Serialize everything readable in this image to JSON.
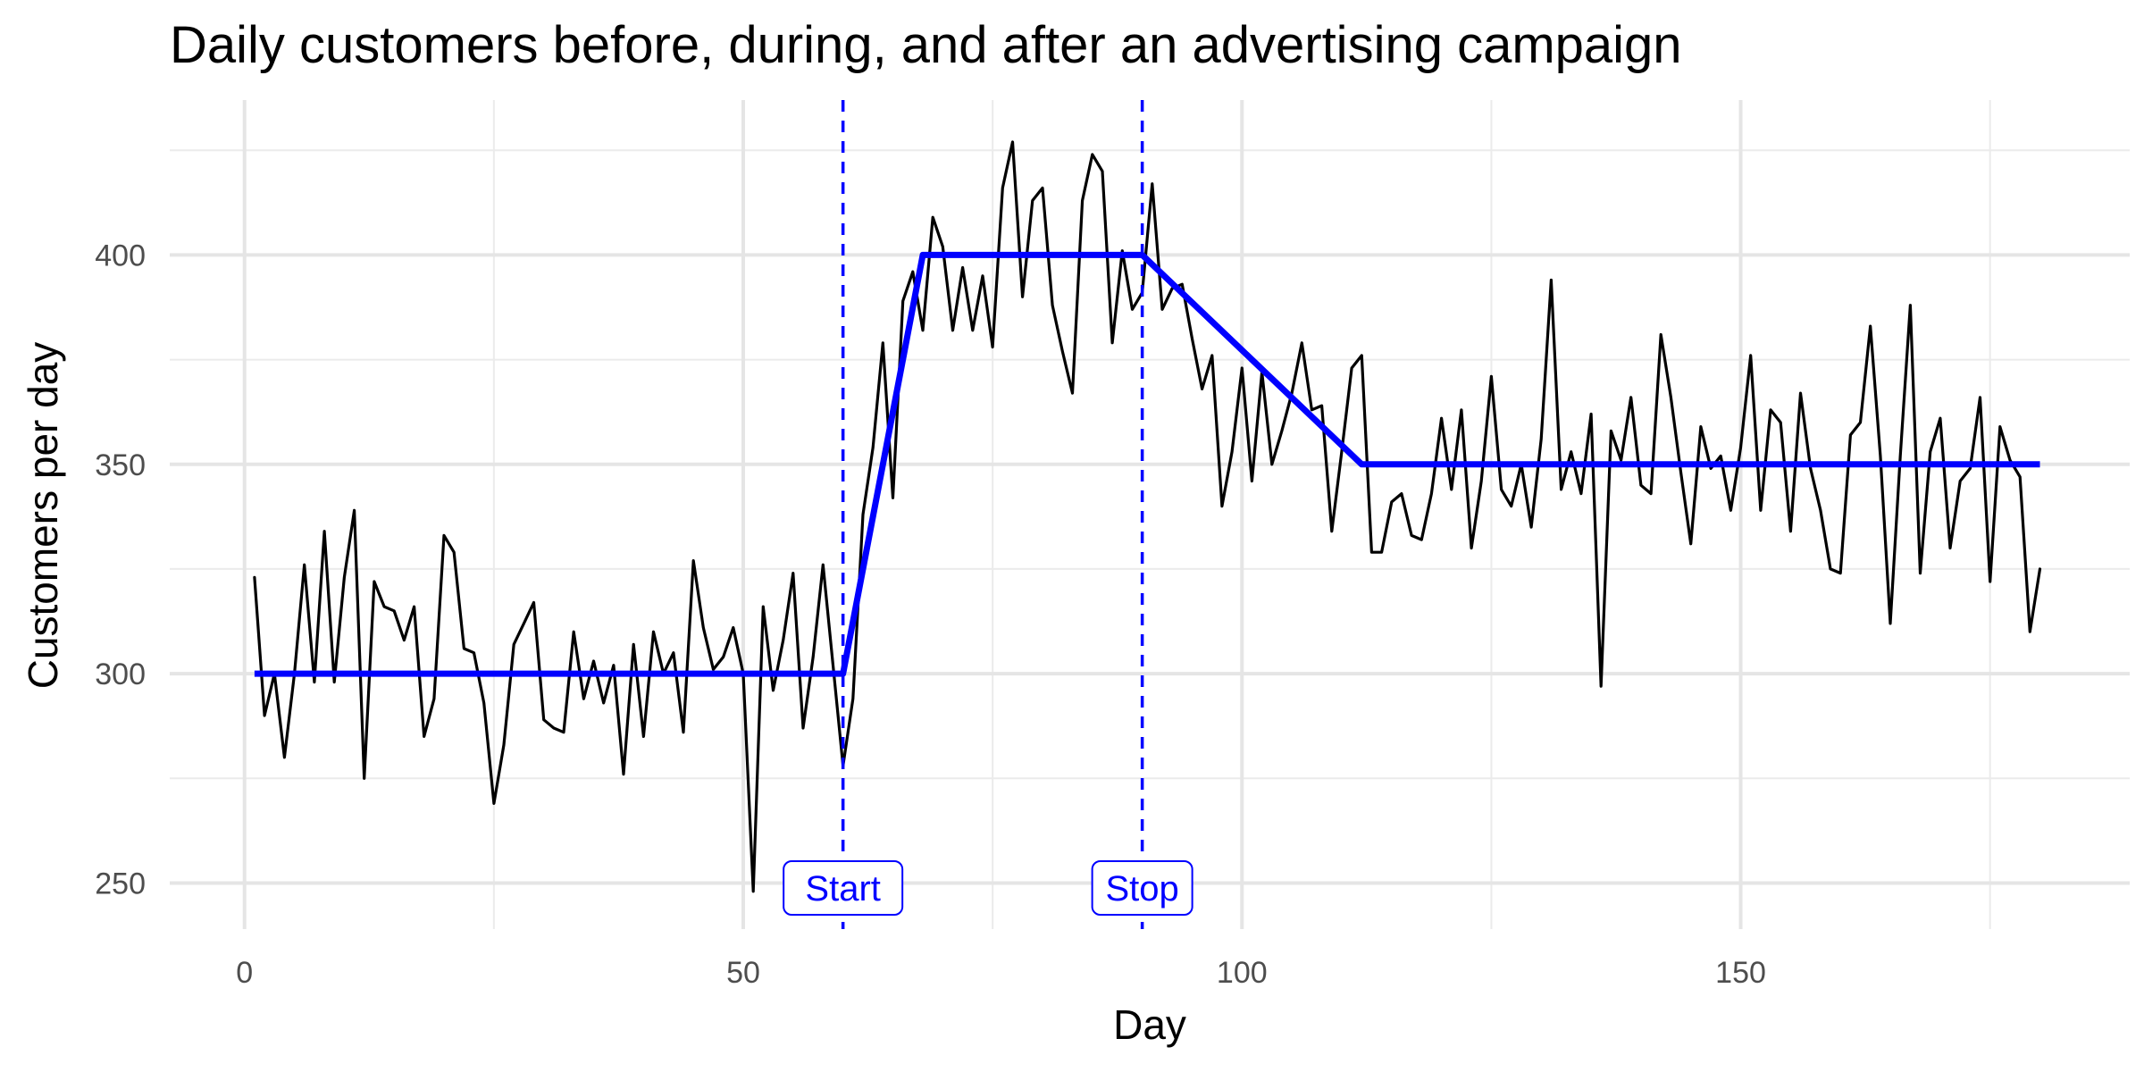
{
  "chart_data": {
    "type": "line",
    "title": "Daily customers before, during, and after an advertising campaign",
    "xlabel": "Day",
    "ylabel": "Customers per day",
    "xlim": [
      -7.5,
      189
    ],
    "ylim": [
      239,
      437
    ],
    "x_ticks": [
      0,
      50,
      100,
      150
    ],
    "x_minor_ticks": [
      25,
      75,
      125,
      175
    ],
    "y_ticks": [
      250,
      300,
      350,
      400
    ],
    "y_minor_ticks": [
      275,
      325,
      375,
      425
    ],
    "grid": true,
    "legend": "none",
    "series": [
      {
        "role": "observed",
        "color": "#000000",
        "x": [
          1,
          2,
          3,
          4,
          5,
          6,
          7,
          8,
          9,
          10,
          11,
          12,
          13,
          14,
          15,
          16,
          17,
          18,
          19,
          20,
          21,
          22,
          23,
          24,
          25,
          26,
          27,
          28,
          29,
          30,
          31,
          32,
          33,
          34,
          35,
          36,
          37,
          38,
          39,
          40,
          41,
          42,
          43,
          44,
          45,
          46,
          47,
          48,
          49,
          50,
          51,
          52,
          53,
          54,
          55,
          56,
          57,
          58,
          59,
          60,
          61,
          62,
          63,
          64,
          65,
          66,
          67,
          68,
          69,
          70,
          71,
          72,
          73,
          74,
          75,
          76,
          77,
          78,
          79,
          80,
          81,
          82,
          83,
          84,
          85,
          86,
          87,
          88,
          89,
          90,
          91,
          92,
          93,
          94,
          95,
          96,
          97,
          98,
          99,
          100,
          101,
          102,
          103,
          104,
          105,
          106,
          107,
          108,
          109,
          110,
          111,
          112,
          113,
          114,
          115,
          116,
          117,
          118,
          119,
          120,
          121,
          122,
          123,
          124,
          125,
          126,
          127,
          128,
          129,
          130,
          131,
          132,
          133,
          134,
          135,
          136,
          137,
          138,
          139,
          140,
          141,
          142,
          143,
          144,
          145,
          146,
          147,
          148,
          149,
          150,
          151,
          152,
          153,
          154,
          155,
          156,
          157,
          158,
          159,
          160,
          161,
          162,
          163,
          164,
          165,
          166,
          167,
          168,
          169,
          170,
          171,
          172,
          173,
          174,
          175,
          176,
          177,
          178,
          179,
          180
        ],
        "y": [
          323,
          290,
          300,
          280,
          300,
          326,
          298,
          334,
          298,
          323,
          339,
          275,
          322,
          316,
          315,
          308,
          316,
          285,
          294,
          333,
          329,
          306,
          305,
          293,
          269,
          283,
          307,
          312,
          317,
          289,
          287,
          286,
          310,
          294,
          303,
          293,
          302,
          276,
          307,
          285,
          310,
          300,
          305,
          286,
          327,
          311,
          301,
          304,
          311,
          300,
          248,
          316,
          296,
          308,
          324,
          287,
          304,
          326,
          302,
          278,
          294,
          338,
          354,
          379,
          342,
          389,
          396,
          382,
          409,
          402,
          382,
          397,
          382,
          395,
          378,
          416,
          427,
          390,
          413,
          416,
          388,
          377,
          367,
          413,
          424,
          420,
          379,
          401,
          387,
          391,
          417,
          387,
          392,
          393,
          380,
          368,
          376,
          340,
          353,
          373,
          346,
          372,
          350,
          358,
          367,
          379,
          363,
          364,
          334,
          353,
          373,
          376,
          329,
          329,
          341,
          343,
          333,
          332,
          343,
          361,
          344,
          363,
          330,
          346,
          371,
          344,
          340,
          350,
          335,
          356,
          394,
          344,
          353,
          343,
          362,
          297,
          358,
          351,
          366,
          345,
          343,
          381,
          366,
          348,
          331,
          359,
          349,
          352,
          339,
          354,
          376,
          339,
          363,
          360,
          334,
          367,
          349,
          339,
          325,
          324,
          357,
          360,
          383,
          352,
          312,
          352,
          388,
          324,
          353,
          361,
          330,
          346,
          349,
          366,
          322,
          359,
          351,
          347,
          310,
          325
        ]
      },
      {
        "role": "fitted",
        "color": "#0000ff",
        "x": [
          1,
          60,
          68,
          90,
          112,
          180
        ],
        "y": [
          300,
          300,
          400,
          400,
          350,
          350
        ]
      }
    ],
    "annotations": [
      {
        "x": 60,
        "label": "Start",
        "color": "#0000ff",
        "style": "dashed vertical line"
      },
      {
        "x": 90,
        "label": "Stop",
        "color": "#0000ff",
        "style": "dashed vertical line"
      }
    ]
  }
}
